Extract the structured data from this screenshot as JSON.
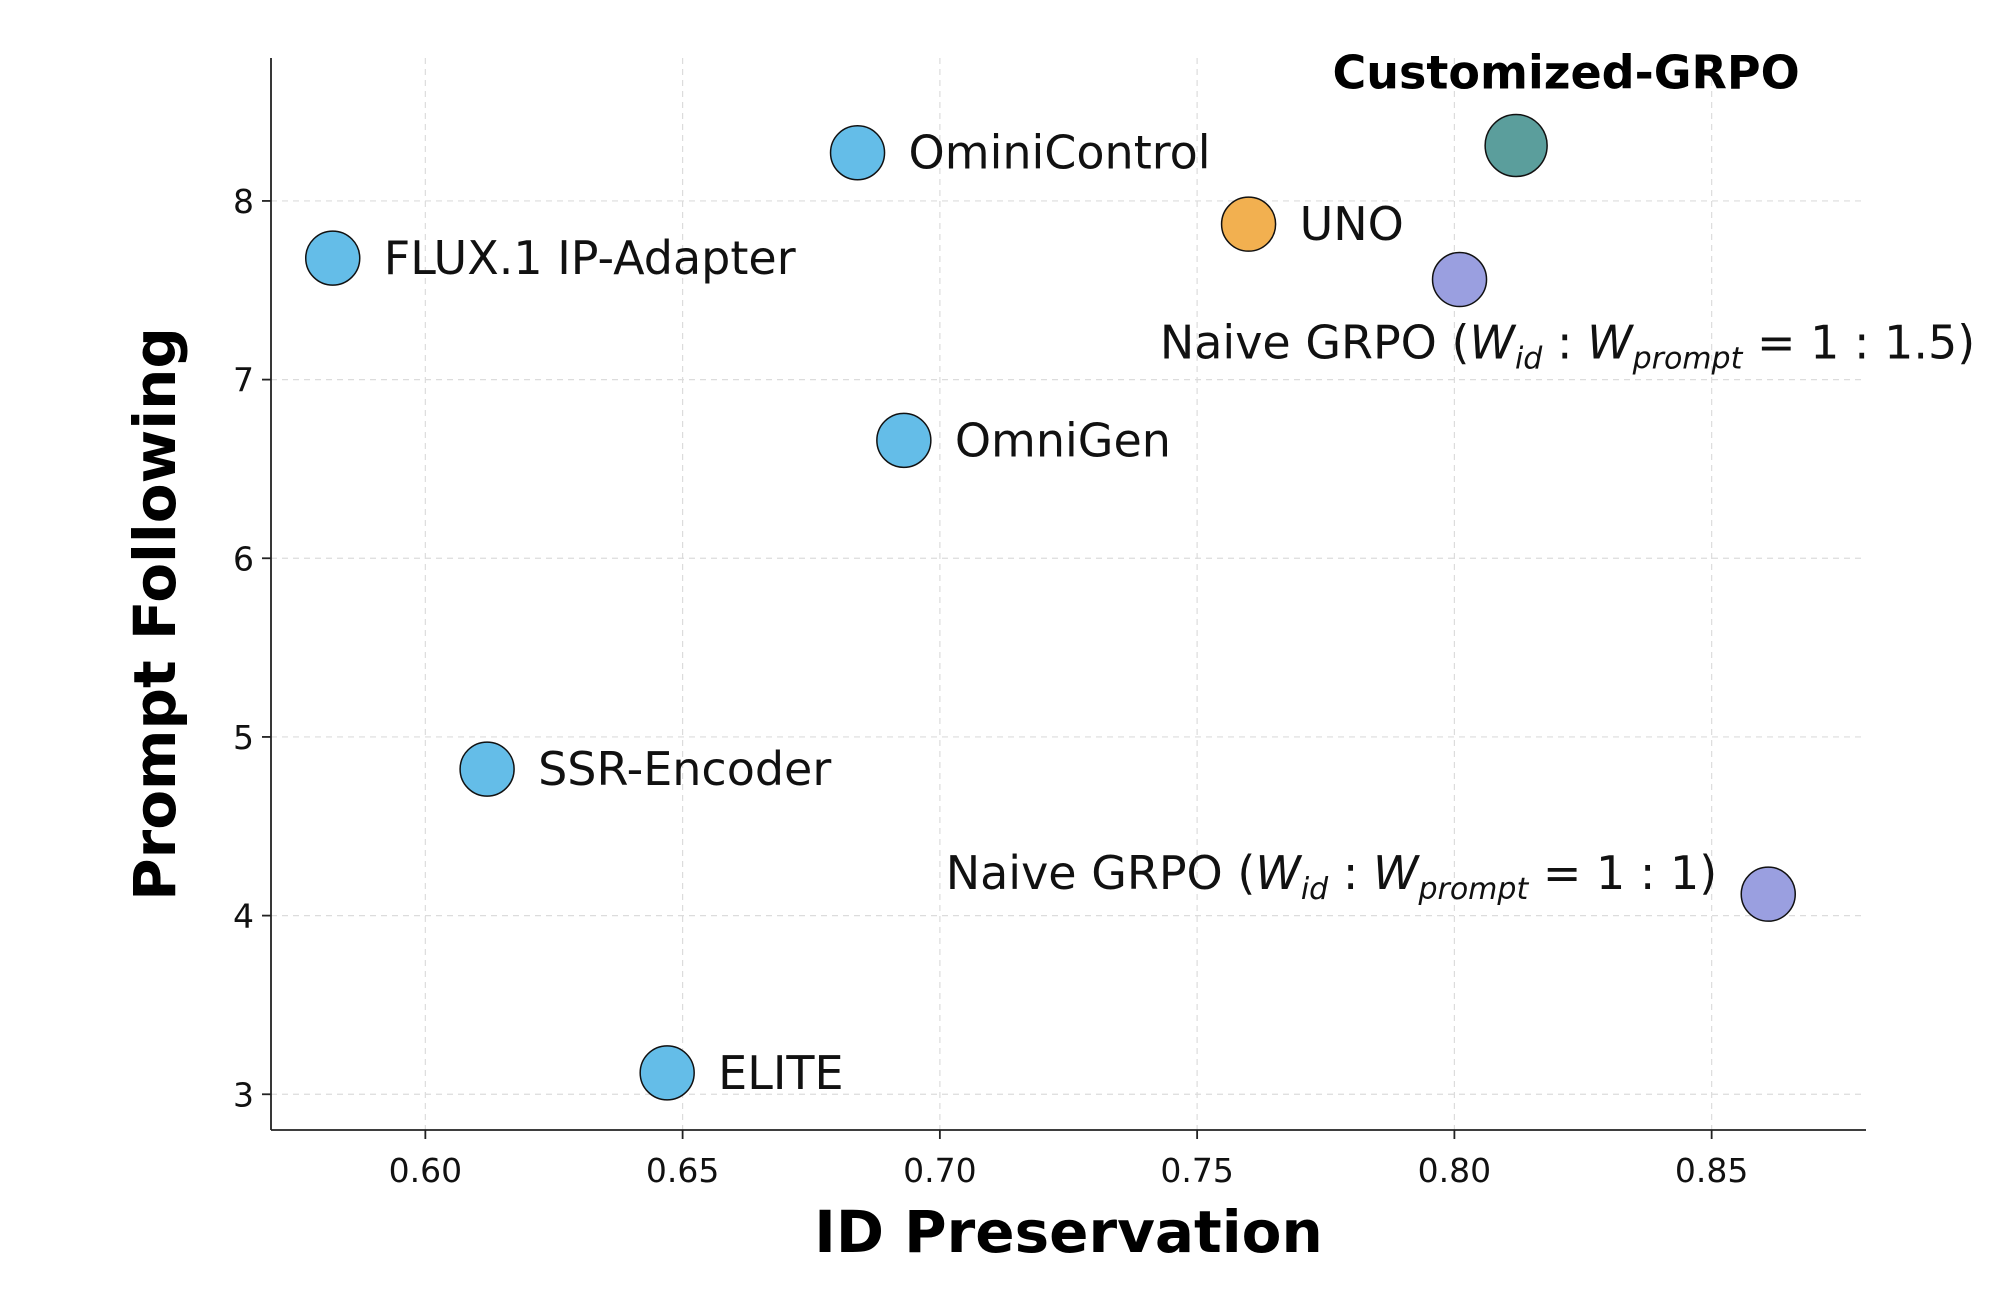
{
  "chart_data": {
    "type": "scatter",
    "title": "",
    "xlabel": "ID Preservation",
    "ylabel": "Prompt Following",
    "xlim": [
      0.57,
      0.88
    ],
    "ylim": [
      2.8,
      8.8
    ],
    "xticks": [
      0.6,
      0.65,
      0.7,
      0.75,
      0.8,
      0.85
    ],
    "xtick_labels": [
      "0.60",
      "0.65",
      "0.70",
      "0.75",
      "0.80",
      "0.85"
    ],
    "yticks": [
      3,
      4,
      5,
      6,
      7,
      8
    ],
    "ytick_labels": [
      "3",
      "4",
      "5",
      "6",
      "7",
      "8"
    ],
    "grid": true,
    "points": [
      {
        "id": "ominicontrol",
        "label": "OminiControl",
        "x": 0.684,
        "y": 8.27,
        "color": "#64bde8",
        "label_pos": "right",
        "bold": false
      },
      {
        "id": "flux-ip-adapter",
        "label": "FLUX.1 IP-Adapter",
        "x": 0.582,
        "y": 7.68,
        "color": "#64bde8",
        "label_pos": "right",
        "bold": false
      },
      {
        "id": "uno",
        "label": "UNO",
        "x": 0.76,
        "y": 7.87,
        "color": "#f2b050",
        "label_pos": "right",
        "bold": false
      },
      {
        "id": "customized-grpo",
        "label": "Customized-GRPO",
        "x": 0.812,
        "y": 8.31,
        "color": "#5b9e9c",
        "label_pos": "above",
        "bold": true
      },
      {
        "id": "naive-grpo-1-1.5",
        "label": "Naive GRPO",
        "ratio": "1 : 1.5",
        "x": 0.801,
        "y": 7.56,
        "color": "#9a9fe0",
        "label_pos": "below",
        "bold": false
      },
      {
        "id": "omnigen",
        "label": "OmniGen",
        "x": 0.693,
        "y": 6.66,
        "color": "#64bde8",
        "label_pos": "right",
        "bold": false
      },
      {
        "id": "ssr-encoder",
        "label": "SSR-Encoder",
        "x": 0.612,
        "y": 4.82,
        "color": "#64bde8",
        "label_pos": "right",
        "bold": false
      },
      {
        "id": "naive-grpo-1-1",
        "label": "Naive GRPO",
        "ratio": "1 : 1",
        "x": 0.861,
        "y": 4.12,
        "color": "#9a9fe0",
        "label_pos": "left",
        "bold": false
      },
      {
        "id": "elite",
        "label": "ELITE",
        "x": 0.647,
        "y": 3.12,
        "color": "#64bde8",
        "label_pos": "right",
        "bold": false
      }
    ],
    "weight_notation": {
      "w": "W",
      "id_sub": "id",
      "prompt_sub": "prompt"
    }
  }
}
